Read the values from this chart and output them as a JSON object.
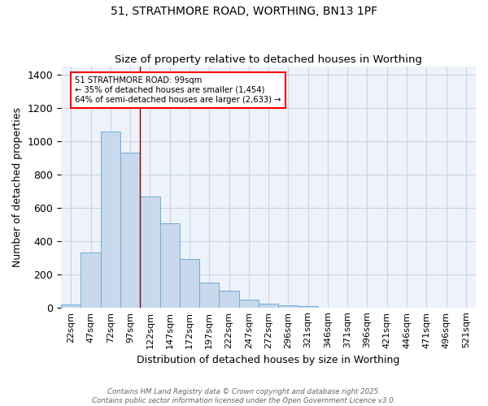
{
  "title1": "51, STRATHMORE ROAD, WORTHING, BN13 1PF",
  "title2": "Size of property relative to detached houses in Worthing",
  "xlabel": "Distribution of detached houses by size in Worthing",
  "ylabel": "Number of detached properties",
  "categories": [
    "22sqm",
    "47sqm",
    "72sqm",
    "97sqm",
    "122sqm",
    "147sqm",
    "172sqm",
    "197sqm",
    "222sqm",
    "247sqm",
    "272sqm",
    "296sqm",
    "321sqm",
    "346sqm",
    "371sqm",
    "396sqm",
    "421sqm",
    "446sqm",
    "471sqm",
    "496sqm",
    "521sqm"
  ],
  "values": [
    20,
    330,
    1060,
    930,
    670,
    505,
    290,
    150,
    100,
    45,
    25,
    15,
    10,
    0,
    0,
    0,
    0,
    0,
    0,
    0,
    0
  ],
  "bar_color": "#c8d8ed",
  "bar_edge_color": "#6baed6",
  "red_line_x": 3.5,
  "annotation_line1": "51 STRATHMORE ROAD: 99sqm",
  "annotation_line2": "← 35% of detached houses are smaller (1,454)",
  "annotation_line3": "64% of semi-detached houses are larger (2,633) →",
  "ylim": [
    0,
    1450
  ],
  "yticks": [
    0,
    200,
    400,
    600,
    800,
    1000,
    1200,
    1400
  ],
  "grid_color": "#c8d4e8",
  "background_color": "#eef2fa",
  "footer_line1": "Contains HM Land Registry data © Crown copyright and database right 2025.",
  "footer_line2": "Contains public sector information licensed under the Open Government Licence v3.0."
}
